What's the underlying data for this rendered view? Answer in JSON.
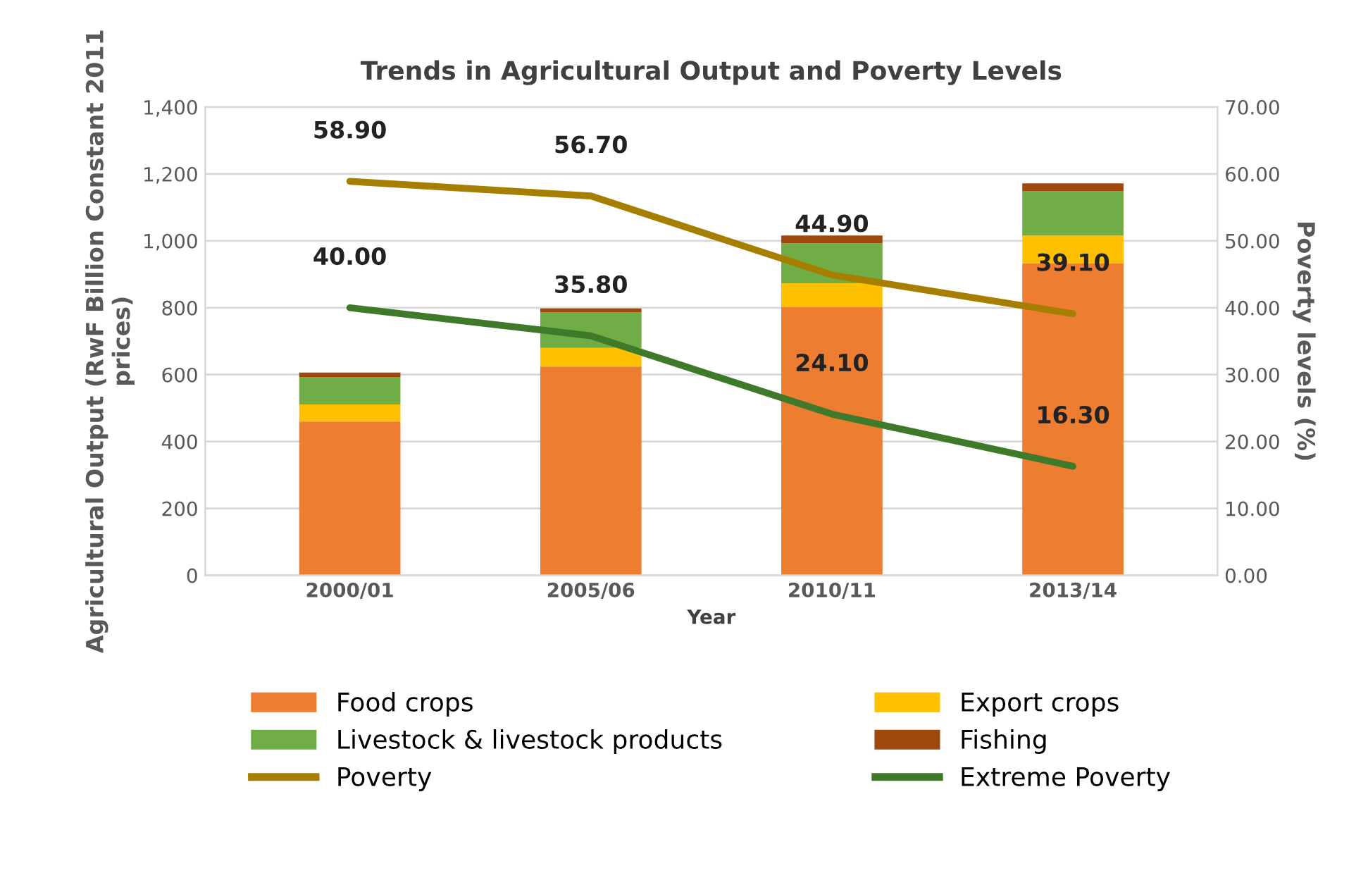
{
  "chart_data": {
    "type": "bar",
    "stacked": true,
    "title": "Trends in Agricultural Output and Poverty Levels",
    "xlabel": "Year",
    "ylabel": "Agricultural Output (RwF Billion Constant 2011 prices)",
    "y2label": "Poverty levels (%)",
    "categories": [
      "2000/01",
      "2005/06",
      "2010/11",
      "2013/14"
    ],
    "series": [
      {
        "name": "Food crops",
        "color": "#ed7d31",
        "values": [
          460,
          624,
          802,
          933
        ]
      },
      {
        "name": "Export crops",
        "color": "#ffc000",
        "values": [
          51,
          56,
          71,
          83
        ]
      },
      {
        "name": "Livestock & livestock products",
        "color": "#70ad47",
        "values": [
          82,
          106,
          120,
          132
        ]
      },
      {
        "name": "Fishing",
        "color": "#9e480e",
        "values": [
          13,
          12,
          23,
          24
        ]
      },
      {
        "name": "Poverty",
        "type": "line",
        "axis": "y2",
        "color": "#a67f00",
        "values": [
          58.9,
          56.7,
          44.9,
          39.1
        ],
        "value_labels": [
          "58.90",
          "56.70",
          "44.90",
          "39.10"
        ]
      },
      {
        "name": "Extreme Poverty",
        "type": "line",
        "axis": "y2",
        "color": "#3f7a2a",
        "values": [
          40.0,
          35.8,
          24.1,
          16.3
        ],
        "value_labels": [
          "40.00",
          "35.80",
          "24.10",
          "16.30"
        ]
      }
    ],
    "ylim": [
      0,
      1400
    ],
    "yticks": [
      {
        "value": 0,
        "label": "0"
      },
      {
        "value": 200,
        "label": "200"
      },
      {
        "value": 400,
        "label": "400"
      },
      {
        "value": 600,
        "label": "600"
      },
      {
        "value": 800,
        "label": "800"
      },
      {
        "value": 1000,
        "label": "1,000"
      },
      {
        "value": 1200,
        "label": "1,200"
      },
      {
        "value": 1400,
        "label": "1,400"
      }
    ],
    "y2lim": [
      0,
      70
    ],
    "y2ticks": [
      {
        "value": 0,
        "label": "0.00"
      },
      {
        "value": 10,
        "label": "10.00"
      },
      {
        "value": 20,
        "label": "20.00"
      },
      {
        "value": 30,
        "label": "30.00"
      },
      {
        "value": 40,
        "label": "40.00"
      },
      {
        "value": 50,
        "label": "50.00"
      },
      {
        "value": 60,
        "label": "60.00"
      },
      {
        "value": 70,
        "label": "70.00"
      }
    ],
    "grid": "y",
    "legend": "bottom",
    "marker": "none",
    "line_style": "solid"
  }
}
